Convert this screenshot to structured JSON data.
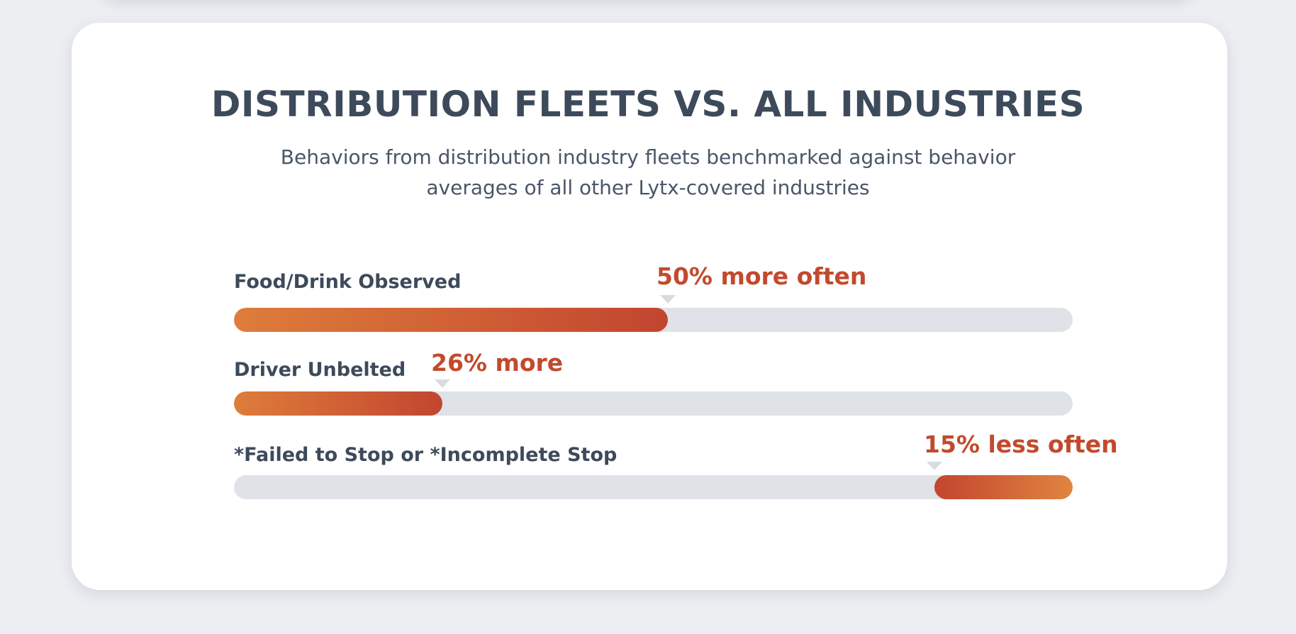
{
  "chart_data": {
    "type": "bar",
    "orientation": "horizontal",
    "title": "DISTRIBUTION FLEETS VS. ALL INDUSTRIES",
    "subtitle_lines": [
      "Behaviors from distribution industry fleets benchmarked against behavior",
      "averages of all other Lytx-covered industries"
    ],
    "categories": [
      "Food/Drink Observed",
      "Driver Unbelted",
      "*Failed to Stop or *Incomplete Stop"
    ],
    "values": [
      50,
      26,
      -15
    ],
    "unit": "%",
    "labels": [
      "50% more often",
      "26% more",
      "15% less often"
    ],
    "colors": {
      "increase": "#c2452f",
      "increase_start": "#de7d3b",
      "decrease": "#c2452f",
      "decrease_end": "#e08540",
      "track": "#dfe2e7",
      "label": "#c24a2c",
      "text": "#3d4a5a"
    }
  }
}
